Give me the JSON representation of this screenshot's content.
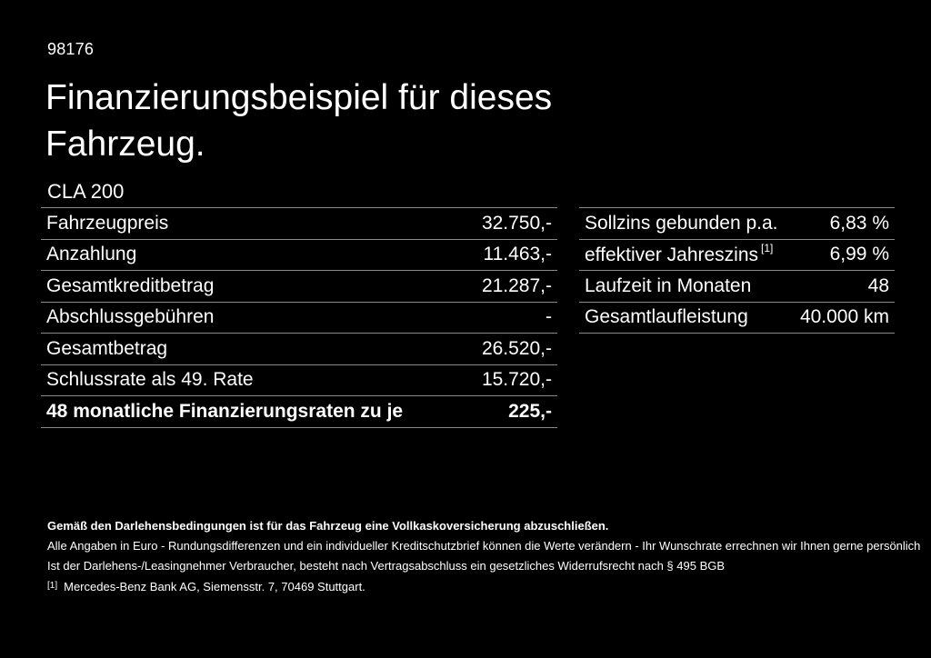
{
  "page": {
    "ref_number": "98176",
    "title": "Finanzierungsbeispiel für dieses Fahrzeug.",
    "model": "CLA 200"
  },
  "finance_table": {
    "rows": [
      {
        "label": "Fahrzeugpreis",
        "value": "32.750,-"
      },
      {
        "label": "Anzahlung",
        "value": "11.463,-"
      },
      {
        "label": "Gesamtkreditbetrag",
        "value": "21.287,-"
      },
      {
        "label": "Abschlussgebühren",
        "value": "-"
      },
      {
        "label": "Gesamtbetrag",
        "value": "26.520,-"
      },
      {
        "label": "Schlussrate als 49. Rate",
        "value": "15.720,-"
      },
      {
        "label": "48 monatliche Finanzierungsraten zu je",
        "value": "225,-"
      }
    ]
  },
  "conditions_table": {
    "rows": [
      {
        "label": "Sollzins gebunden p.a.",
        "sup": "",
        "value": "6,83 %"
      },
      {
        "label": "effektiver Jahreszins",
        "sup": "[1]",
        "value": "6,99 %"
      },
      {
        "label": "Laufzeit in Monaten",
        "sup": "",
        "value": "48"
      },
      {
        "label": "Gesamtlaufleistung",
        "sup": "",
        "value": "40.000 km"
      }
    ]
  },
  "footer": {
    "insurance_note": "Gemäß den Darlehensbedingungen ist für das Fahrzeug eine Vollkaskoversicherung abzuschließen.",
    "line2": "Alle Angaben in Euro - Rundungsdifferenzen und ein individueller Kreditschutzbrief können die Werte verändern - Ihr Wunschrate errechnen wir Ihnen gerne persönlich",
    "line3": "Ist der Darlehens-/Leasingnehmer Verbraucher, besteht nach Vertragsabschluss ein gesetzliches Widerrufsrecht nach § 495 BGB",
    "footnote_marker": "[1]",
    "footnote_text": "Mercedes-Benz Bank AG, Siemensstr. 7, 70469 Stuttgart."
  },
  "colors": {
    "background": "#000000",
    "text": "#ffffff",
    "divider": "#8a8a8a"
  }
}
